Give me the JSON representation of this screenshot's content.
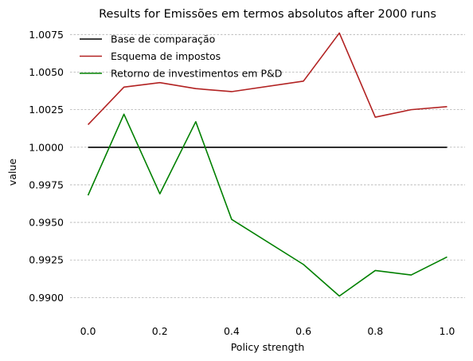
{
  "chart_data": {
    "type": "line",
    "title": "Results for Emissões em termos absolutos after 2000 runs",
    "xlabel": "Policy strength",
    "ylabel": "value",
    "x": [
      0.0,
      0.1,
      0.2,
      0.3,
      0.4,
      0.6,
      0.7,
      0.8,
      0.9,
      1.0
    ],
    "xlim": [
      -0.05,
      1.05
    ],
    "ylim": [
      0.9888,
      1.0081
    ],
    "xticks": [
      0.0,
      0.2,
      0.4,
      0.6,
      0.8,
      1.0
    ],
    "xtick_labels": [
      "0.0",
      "0.2",
      "0.4",
      "0.6",
      "0.8",
      "1.0"
    ],
    "yticks": [
      0.99,
      0.9925,
      0.995,
      0.9975,
      1.0,
      1.0025,
      1.005,
      1.0075
    ],
    "ytick_labels": [
      "0.9900",
      "0.9925",
      "0.9950",
      "0.9975",
      "1.0000",
      "1.0025",
      "1.0050",
      "1.0075"
    ],
    "grid": "horizontal dashed",
    "legend_position": "top-left",
    "series": [
      {
        "name": "Base de comparação",
        "color": "#000000",
        "values": [
          1.0,
          1.0,
          1.0,
          1.0,
          1.0,
          1.0,
          1.0,
          1.0,
          1.0,
          1.0
        ]
      },
      {
        "name": "Esquema de impostos",
        "color": "#b22222",
        "values": [
          1.0015,
          1.004,
          1.0043,
          1.0039,
          1.0037,
          1.0044,
          1.0076,
          1.002,
          1.0025,
          1.0027
        ]
      },
      {
        "name": "Retorno de investimentos em P&D",
        "color": "#008000",
        "values": [
          0.9968,
          1.0022,
          0.9969,
          1.0017,
          0.9952,
          0.9922,
          0.9901,
          0.9918,
          0.9915,
          0.9927
        ]
      }
    ]
  }
}
